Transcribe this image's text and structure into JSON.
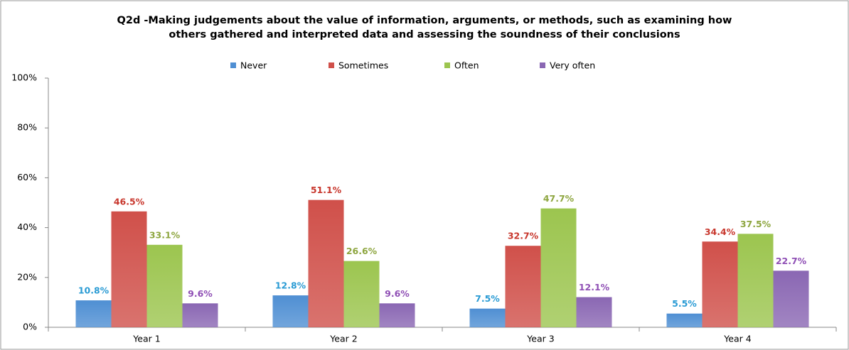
{
  "chart_data": {
    "type": "bar",
    "title": "Q2d -Making judgements about the value of information, arguments, or methods, such as examining how others gathered and interpreted data and assessing the soundness of their conclusions",
    "categories": [
      "Year 1",
      "Year 2",
      "Year 3",
      "Year 4"
    ],
    "series": [
      {
        "name": "Never",
        "color": "#4f8fd3",
        "label_color": "#2a9bd4",
        "values": [
          10.8,
          12.8,
          7.5,
          5.5
        ],
        "value_labels": [
          "10.8%",
          "12.8%",
          "7.5%",
          "5.5%"
        ]
      },
      {
        "name": "Sometimes",
        "color": "#d0504a",
        "label_color": "#c8372d",
        "values": [
          46.5,
          51.1,
          32.7,
          34.4
        ],
        "value_labels": [
          "46.5%",
          "51.1%",
          "32.7%",
          "34.4%"
        ]
      },
      {
        "name": "Often",
        "color": "#9cc54f",
        "label_color": "#8ea640",
        "values": [
          33.1,
          26.6,
          47.7,
          37.5
        ],
        "value_labels": [
          "33.1%",
          "26.6%",
          "47.7%",
          "37.5%"
        ]
      },
      {
        "name": "Very often",
        "color": "#8a67b3",
        "label_color": "#8f4fb5",
        "values": [
          9.6,
          9.6,
          12.1,
          22.7
        ],
        "value_labels": [
          "9.6%",
          "9.6%",
          "12.1%",
          "22.7%"
        ]
      }
    ],
    "ylim": [
      0,
      100
    ],
    "yticks": [
      {
        "value": 0,
        "label": "0%"
      },
      {
        "value": 20,
        "label": "20%"
      },
      {
        "value": 40,
        "label": "40%"
      },
      {
        "value": 60,
        "label": "60%"
      },
      {
        "value": 80,
        "label": "80%"
      },
      {
        "value": 100,
        "label": "100%"
      }
    ],
    "grid": false,
    "legend": "top"
  }
}
